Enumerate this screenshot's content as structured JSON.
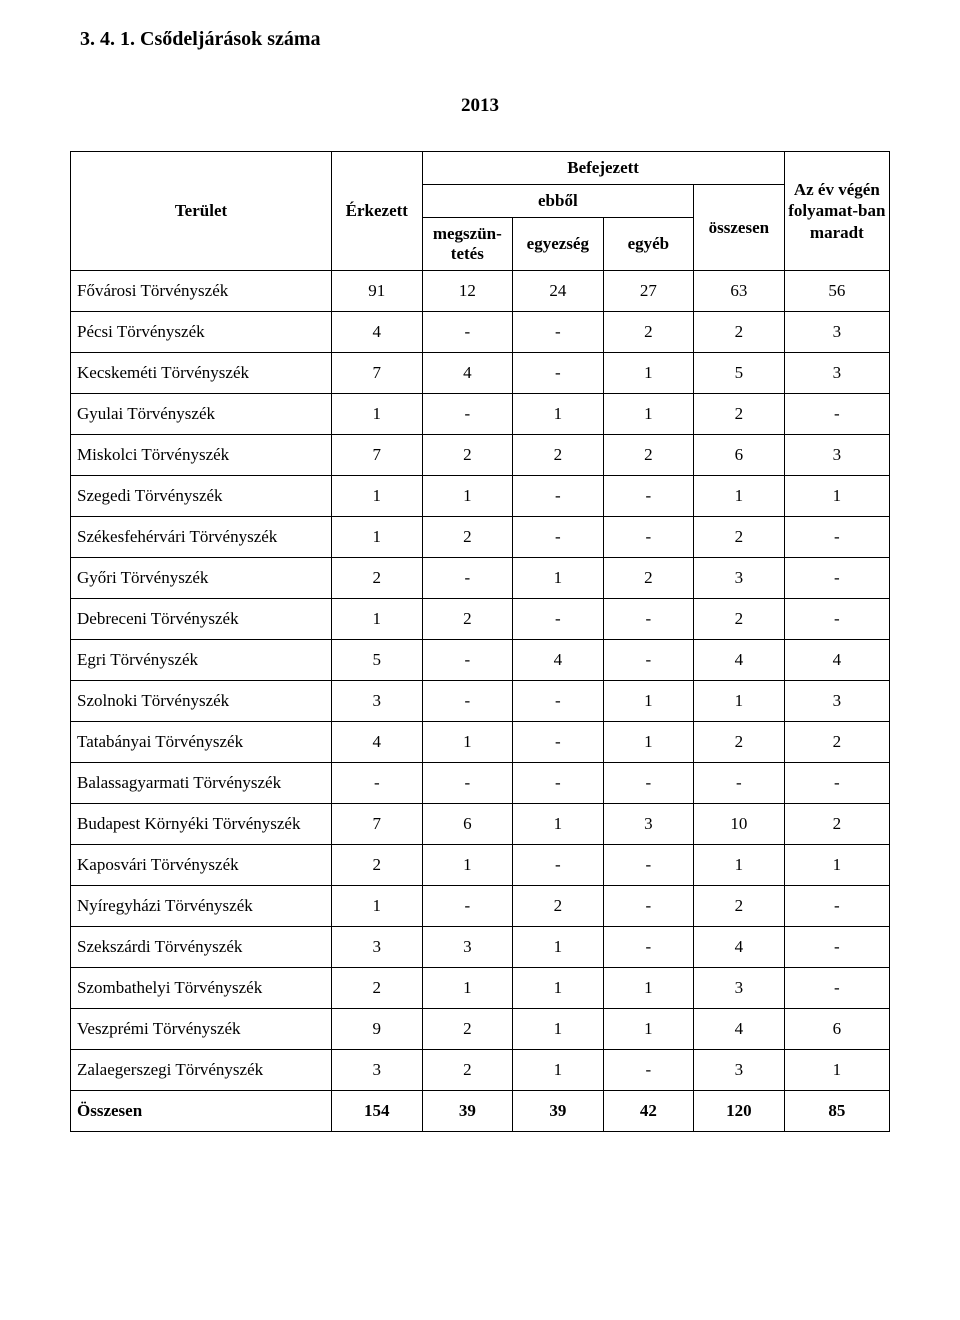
{
  "title": "3. 4. 1.  Csődeljárások  száma",
  "year": "2013",
  "headers": {
    "terulet": "Terület",
    "erkezett": "Érkezett",
    "befejezett": "Befejezett",
    "ebbol": "ebből",
    "megszuntetes": "megszün-\ntetés",
    "egyezseg": "egyezség",
    "egyeb": "egyéb",
    "osszesen": "összesen",
    "maradt": "Az év végén folyamat-ban maradt"
  },
  "rows": [
    {
      "label": "Fővárosi Törvényszék",
      "erk": "91",
      "c1": "12",
      "c2": "24",
      "c3": "27",
      "ossz": "63",
      "mar": "56"
    },
    {
      "label": "Pécsi Törvényszék",
      "erk": "4",
      "c1": "-",
      "c2": "-",
      "c3": "2",
      "ossz": "2",
      "mar": "3"
    },
    {
      "label": "Kecskeméti Törvényszék",
      "erk": "7",
      "c1": "4",
      "c2": "-",
      "c3": "1",
      "ossz": "5",
      "mar": "3"
    },
    {
      "label": "Gyulai Törvényszék",
      "erk": "1",
      "c1": "-",
      "c2": "1",
      "c3": "1",
      "ossz": "2",
      "mar": "-"
    },
    {
      "label": "Miskolci Törvényszék",
      "erk": "7",
      "c1": "2",
      "c2": "2",
      "c3": "2",
      "ossz": "6",
      "mar": "3"
    },
    {
      "label": "Szegedi Törvényszék",
      "erk": "1",
      "c1": "1",
      "c2": "-",
      "c3": "-",
      "ossz": "1",
      "mar": "1"
    },
    {
      "label": "Székesfehérvári Törvényszék",
      "erk": "1",
      "c1": "2",
      "c2": "-",
      "c3": "-",
      "ossz": "2",
      "mar": "-"
    },
    {
      "label": "Győri Törvényszék",
      "erk": "2",
      "c1": "-",
      "c2": "1",
      "c3": "2",
      "ossz": "3",
      "mar": "-"
    },
    {
      "label": "Debreceni Törvényszék",
      "erk": "1",
      "c1": "2",
      "c2": "-",
      "c3": "-",
      "ossz": "2",
      "mar": "-"
    },
    {
      "label": "Egri Törvényszék",
      "erk": "5",
      "c1": "-",
      "c2": "4",
      "c3": "-",
      "ossz": "4",
      "mar": "4"
    },
    {
      "label": "Szolnoki Törvényszék",
      "erk": "3",
      "c1": "-",
      "c2": "-",
      "c3": "1",
      "ossz": "1",
      "mar": "3"
    },
    {
      "label": "Tatabányai Törvényszék",
      "erk": "4",
      "c1": "1",
      "c2": "-",
      "c3": "1",
      "ossz": "2",
      "mar": "2"
    },
    {
      "label": "Balassagyarmati Törvényszék",
      "erk": "-",
      "c1": "-",
      "c2": "-",
      "c3": "-",
      "ossz": "-",
      "mar": "-"
    },
    {
      "label": "Budapest Környéki Törvényszék",
      "erk": "7",
      "c1": "6",
      "c2": "1",
      "c3": "3",
      "ossz": "10",
      "mar": "2"
    },
    {
      "label": "Kaposvári Törvényszék",
      "erk": "2",
      "c1": "1",
      "c2": "-",
      "c3": "-",
      "ossz": "1",
      "mar": "1"
    },
    {
      "label": "Nyíregyházi Törvényszék",
      "erk": "1",
      "c1": "-",
      "c2": "2",
      "c3": "-",
      "ossz": "2",
      "mar": "-"
    },
    {
      "label": "Szekszárdi Törvényszék",
      "erk": "3",
      "c1": "3",
      "c2": "1",
      "c3": "-",
      "ossz": "4",
      "mar": "-"
    },
    {
      "label": "Szombathelyi Törvényszék",
      "erk": "2",
      "c1": "1",
      "c2": "1",
      "c3": "1",
      "ossz": "3",
      "mar": "-"
    },
    {
      "label": "Veszprémi Törvényszék",
      "erk": "9",
      "c1": "2",
      "c2": "1",
      "c3": "1",
      "ossz": "4",
      "mar": "6"
    },
    {
      "label": "Zalaegerszegi Törvényszék",
      "erk": "3",
      "c1": "2",
      "c2": "1",
      "c3": "-",
      "ossz": "3",
      "mar": "1"
    }
  ],
  "total": {
    "label": "Összesen",
    "erk": "154",
    "c1": "39",
    "c2": "39",
    "c3": "42",
    "ossz": "120",
    "mar": "85"
  },
  "style": {
    "background_color": "#ffffff",
    "text_color": "#000000",
    "border_color": "#000000",
    "font_family": "Times New Roman",
    "title_fontsize": 20,
    "year_fontsize": 19,
    "header_fontsize": 17,
    "cell_fontsize": 17
  }
}
